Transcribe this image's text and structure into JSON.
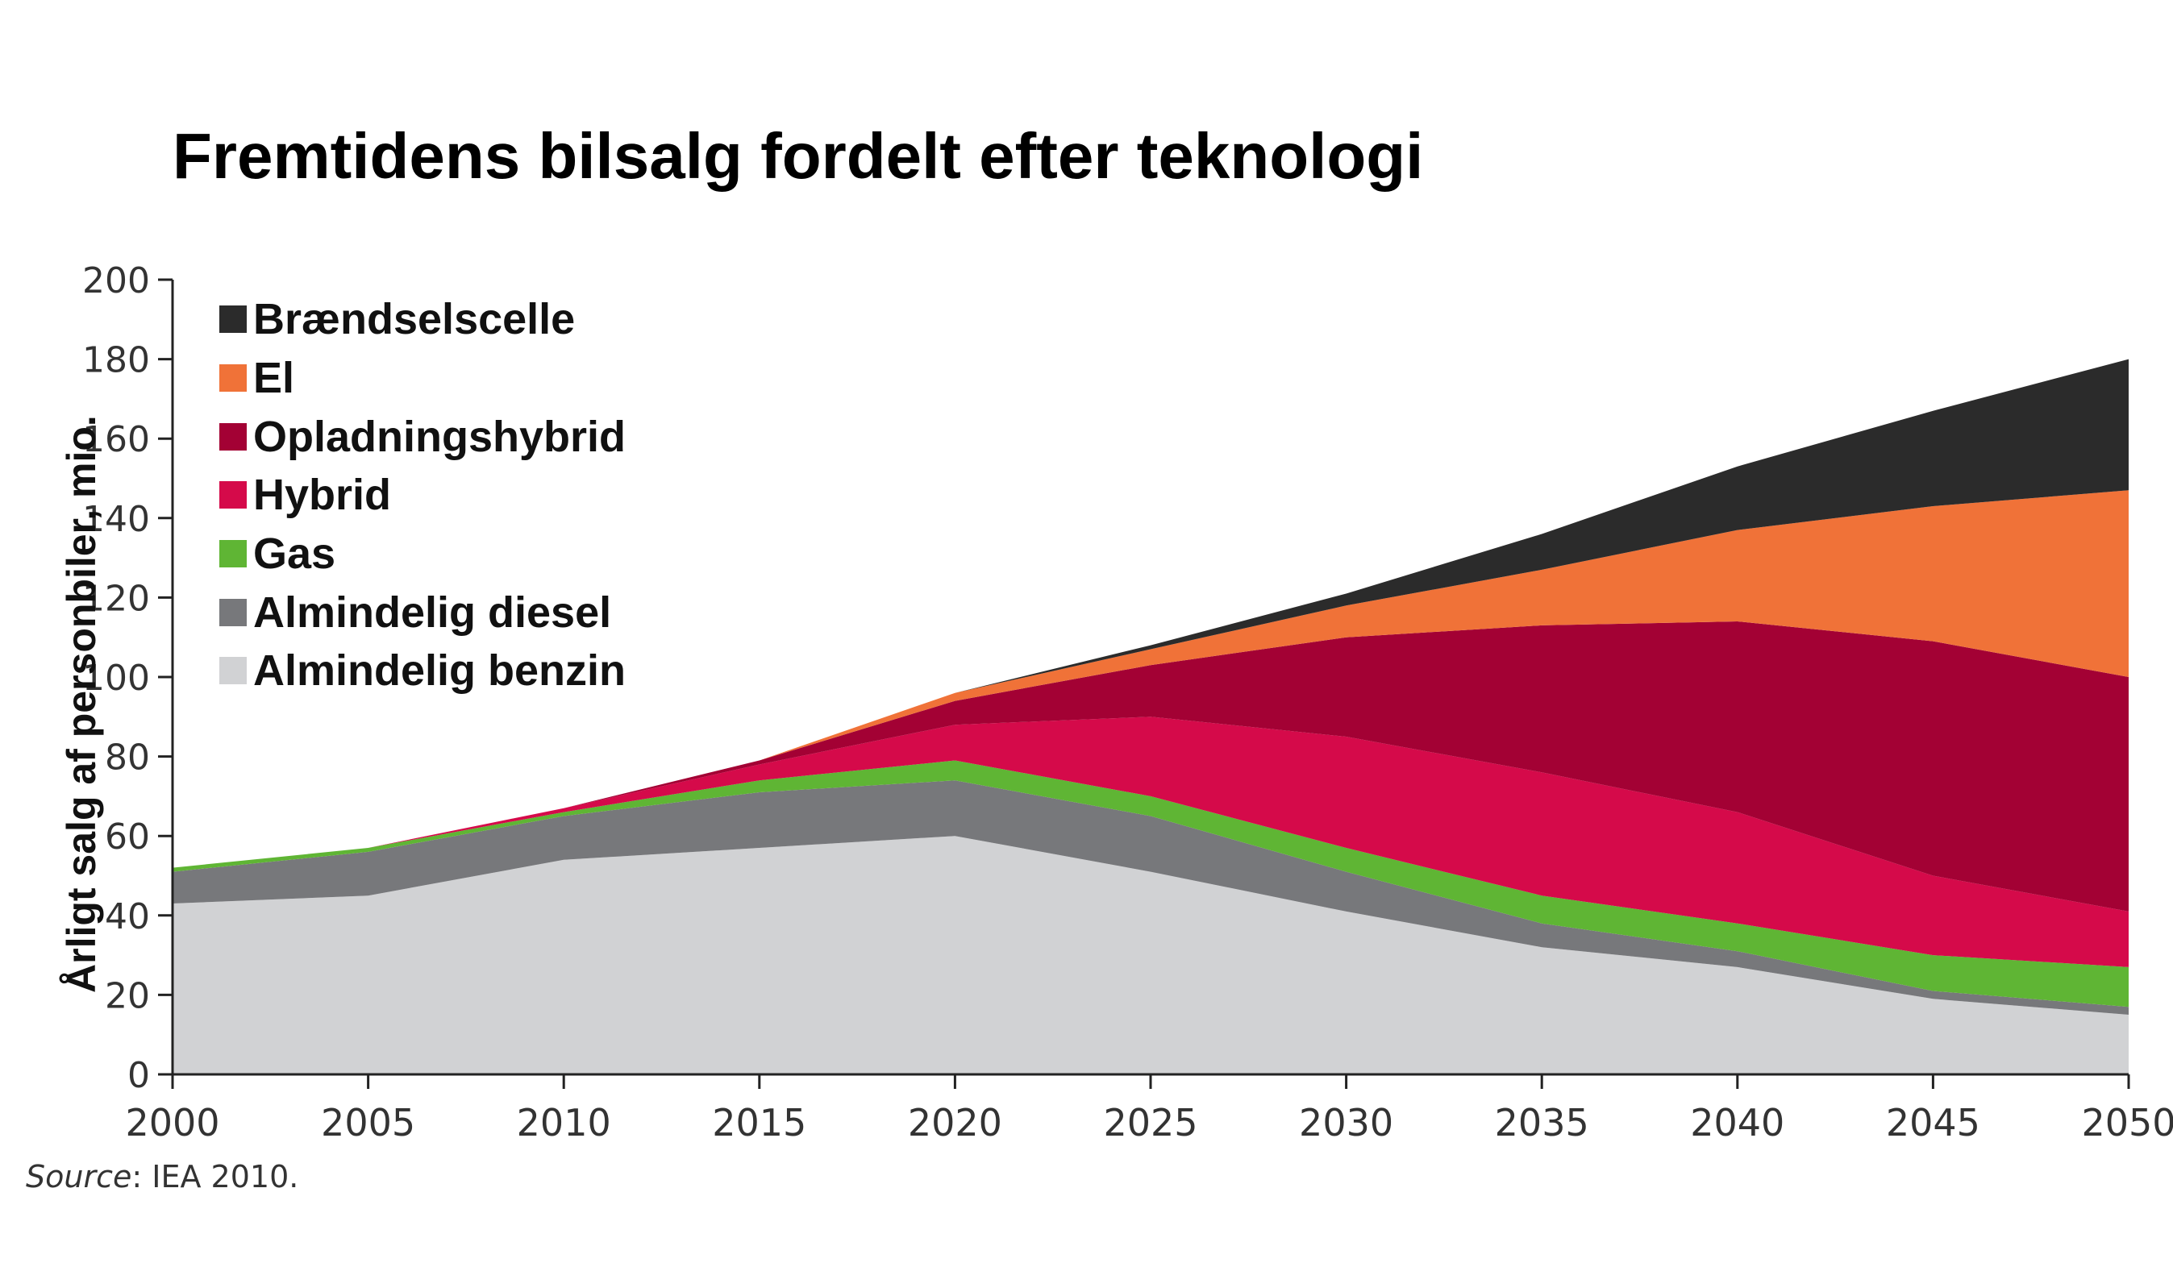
{
  "page": {
    "source_label": "Source",
    "source_text": ": IEA 2010."
  },
  "chart_data": {
    "type": "area",
    "stacked": true,
    "title": "Fremtidens bilsalg fordelt efter teknologi",
    "xlabel": "",
    "ylabel": "Årligt salg af personbiler, mio.",
    "x": [
      2000,
      2005,
      2010,
      2015,
      2020,
      2025,
      2030,
      2035,
      2040,
      2045,
      2050
    ],
    "xlim": [
      2000,
      2050
    ],
    "ylim": [
      0,
      200
    ],
    "yticks": [
      0,
      20,
      40,
      60,
      80,
      100,
      120,
      140,
      160,
      180,
      200
    ],
    "grid": false,
    "legend_position": "top-left",
    "series": [
      {
        "name": "Almindelig benzin",
        "color": "#d1d2d4",
        "values": [
          43,
          45,
          54,
          57,
          60,
          51,
          41,
          32,
          27,
          19,
          15
        ]
      },
      {
        "name": "Almindelig diesel",
        "color": "#77787b",
        "values": [
          8,
          11,
          11,
          14,
          14,
          14,
          10,
          6,
          4,
          2,
          2
        ]
      },
      {
        "name": "Gas",
        "color": "#5fb534",
        "values": [
          1,
          1,
          1,
          3,
          5,
          5,
          6,
          7,
          7,
          9,
          10
        ]
      },
      {
        "name": "Hybrid",
        "color": "#d50a4a",
        "values": [
          0,
          0,
          1,
          4,
          9,
          20,
          28,
          31,
          28,
          20,
          14
        ]
      },
      {
        "name": "Opladningshybrid",
        "color": "#a30134",
        "values": [
          0,
          0,
          0,
          1,
          6,
          13,
          25,
          37,
          48,
          59,
          59
        ]
      },
      {
        "name": "El",
        "color": "#f07238",
        "values": [
          0,
          0,
          0,
          0,
          2,
          4,
          8,
          14,
          23,
          34,
          47
        ]
      },
      {
        "name": "Brændselscelle",
        "color": "#2b2b2b",
        "values": [
          0,
          0,
          0,
          0,
          0,
          1,
          3,
          9,
          16,
          24,
          33
        ]
      }
    ]
  }
}
